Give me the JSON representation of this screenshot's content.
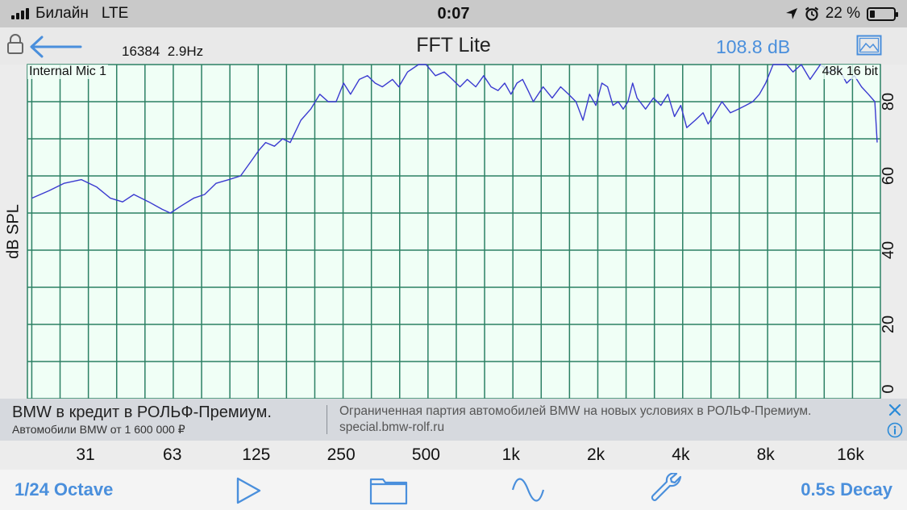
{
  "status_bar": {
    "carrier": "Билайн",
    "network": "LTE",
    "time": "0:07",
    "battery_text": "22 %",
    "battery_level": 0.22
  },
  "header": {
    "fft_info": "16384  2.9Hz",
    "title": "FFT Lite",
    "level": "108.8 dB",
    "accent_color": "#4a8fdc"
  },
  "chart_labels": {
    "input": "Internal Mic 1",
    "format": "48k 16 bit"
  },
  "chart_data": {
    "type": "line",
    "ylabel": "dB SPL",
    "ylim": [
      0,
      90
    ],
    "yticks": [
      {
        "value": 80,
        "label": "80"
      },
      {
        "value": 60,
        "label": "60"
      },
      {
        "value": 40,
        "label": "40"
      },
      {
        "value": 20,
        "label": "20"
      },
      {
        "value": 0,
        "label": "0"
      }
    ],
    "x_scale": "log",
    "x_ticks": [
      {
        "value": 31,
        "label": "31"
      },
      {
        "value": 63,
        "label": "63"
      },
      {
        "value": 125,
        "label": "125"
      },
      {
        "value": 250,
        "label": "250"
      },
      {
        "value": 500,
        "label": "500"
      },
      {
        "value": 1000,
        "label": "1k"
      },
      {
        "value": 2000,
        "label": "2k"
      },
      {
        "value": 4000,
        "label": "4k"
      },
      {
        "value": 8000,
        "label": "8k"
      },
      {
        "value": 16000,
        "label": "16k"
      }
    ],
    "grid": true,
    "series": [
      {
        "color": "#3a3ad0",
        "x": [
          20,
          23,
          26,
          30,
          34,
          38,
          42,
          46,
          52,
          58,
          62,
          68,
          75,
          82,
          90,
          100,
          110,
          120,
          128,
          135,
          145,
          155,
          165,
          180,
          195,
          210,
          225,
          240,
          255,
          270,
          290,
          310,
          330,
          350,
          380,
          400,
          430,
          470,
          500,
          540,
          580,
          620,
          660,
          700,
          750,
          800,
          850,
          900,
          950,
          1000,
          1050,
          1100,
          1150,
          1200,
          1300,
          1400,
          1500,
          1600,
          1700,
          1800,
          1900,
          2000,
          2100,
          2200,
          2300,
          2400,
          2500,
          2600,
          2700,
          2800,
          3000,
          3200,
          3400,
          3600,
          3800,
          4000,
          4200,
          4500,
          4800,
          5000,
          5300,
          5600,
          6000,
          6400,
          6800,
          7200,
          7600,
          8000,
          8500,
          9000,
          9500,
          10000,
          10700,
          11500,
          12500,
          13500,
          14500,
          15500,
          16500,
          17500,
          18500,
          19500,
          20000
        ],
        "y": [
          54,
          56,
          58,
          59,
          57,
          54,
          53,
          55,
          53,
          51,
          50,
          52,
          54,
          55,
          58,
          59,
          60,
          64,
          67,
          69,
          68,
          70,
          69,
          75,
          78,
          82,
          80,
          80,
          85,
          82,
          86,
          87,
          85,
          84,
          86,
          84,
          88,
          90,
          90,
          87,
          88,
          86,
          84,
          86,
          84,
          87,
          84,
          83,
          85,
          82,
          85,
          86,
          83,
          80,
          84,
          81,
          84,
          82,
          80,
          75,
          82,
          79,
          85,
          84,
          79,
          80,
          78,
          80,
          85,
          81,
          78,
          81,
          79,
          82,
          76,
          79,
          73,
          75,
          77,
          74,
          77,
          80,
          77,
          78,
          79,
          80,
          82,
          85,
          91,
          90,
          92,
          88,
          90,
          86,
          90,
          88,
          89,
          85,
          87,
          84,
          82,
          80,
          69
        ]
      }
    ]
  },
  "ad": {
    "title": "BMW в кредит в РОЛЬФ-Премиум.",
    "subtitle": "Автомобили BMW от 1 600 000 ₽",
    "description": "Ограниченная партия автомобилей BMW на новых условиях в РОЛЬФ-Премиум. special.bmw-rolf.ru"
  },
  "toolbar": {
    "octave_label": "1/24 Octave",
    "decay_label": "0.5s Decay",
    "icons": [
      "play-icon",
      "folder-icon",
      "sine-wave-icon",
      "wrench-icon"
    ]
  }
}
